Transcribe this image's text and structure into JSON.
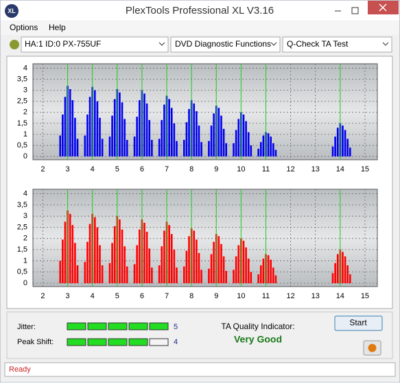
{
  "window": {
    "title": "PlexTools Professional XL V3.16",
    "icon": "XL"
  },
  "menu": [
    "Options",
    "Help"
  ],
  "toolbar": [
    "HA:1 ID:0  PX-755UF",
    "DVD Diagnostic Functions",
    "Q-Check TA Test"
  ],
  "chart_data": [
    {
      "type": "bar",
      "color": "#0000ee",
      "x": [
        2.7,
        2.8,
        2.9,
        3.0,
        3.1,
        3.2,
        3.3,
        3.4,
        3.7,
        3.8,
        3.9,
        4.0,
        4.1,
        4.2,
        4.3,
        4.4,
        4.7,
        4.8,
        4.9,
        5.0,
        5.1,
        5.2,
        5.3,
        5.4,
        5.7,
        5.8,
        5.9,
        6.0,
        6.1,
        6.2,
        6.3,
        6.4,
        6.7,
        6.8,
        6.9,
        7.0,
        7.1,
        7.2,
        7.3,
        7.4,
        7.7,
        7.8,
        7.9,
        8.0,
        8.1,
        8.2,
        8.3,
        8.4,
        8.7,
        8.8,
        8.9,
        9.0,
        9.1,
        9.2,
        9.3,
        9.4,
        9.7,
        9.8,
        9.9,
        10.0,
        10.1,
        10.2,
        10.3,
        10.4,
        10.7,
        10.8,
        10.9,
        11.0,
        11.1,
        11.2,
        11.3,
        11.4,
        13.7,
        13.8,
        13.9,
        14.0,
        14.1,
        14.2,
        14.3,
        14.4
      ],
      "values": [
        0.95,
        1.9,
        2.7,
        3.2,
        3.05,
        2.55,
        1.75,
        0.8,
        0.95,
        1.9,
        2.7,
        3.15,
        3.0,
        2.5,
        1.75,
        0.8,
        0.9,
        1.85,
        2.6,
        3.05,
        2.9,
        2.45,
        1.7,
        0.75,
        0.9,
        1.8,
        2.55,
        3.0,
        2.85,
        2.4,
        1.65,
        0.75,
        0.8,
        1.65,
        2.35,
        2.75,
        2.6,
        2.2,
        1.5,
        0.7,
        0.75,
        1.55,
        2.15,
        2.55,
        2.4,
        2.05,
        1.4,
        0.65,
        0.7,
        1.4,
        1.95,
        2.3,
        2.2,
        1.85,
        1.25,
        0.6,
        0.6,
        1.2,
        1.7,
        2.0,
        1.9,
        1.6,
        1.1,
        0.5,
        0.35,
        0.65,
        0.95,
        1.1,
        1.05,
        0.9,
        0.6,
        0.3,
        0.45,
        0.9,
        1.3,
        1.5,
        1.4,
        1.2,
        0.8,
        0.4
      ],
      "xlim": [
        1.6,
        15.5
      ],
      "ylim": [
        -0.15,
        4.2
      ],
      "xticks": [
        2,
        3,
        4,
        5,
        6,
        7,
        8,
        9,
        10,
        11,
        12,
        13,
        14,
        15
      ],
      "yticks": [
        0,
        {
          "value": 0.5,
          "label": "0,5"
        },
        1,
        {
          "value": 1.5,
          "label": "1,5"
        },
        2,
        {
          "value": 2.5,
          "label": "2,5"
        },
        3,
        {
          "value": 3.5,
          "label": "3,5"
        },
        4
      ],
      "grid": true,
      "reference_lines": {
        "values": [
          3,
          4,
          5,
          6,
          7,
          8,
          9,
          10,
          11,
          14
        ],
        "color": "#22cc22"
      }
    },
    {
      "type": "bar",
      "color": "#ff0000",
      "x": [
        2.7,
        2.8,
        2.9,
        3.0,
        3.1,
        3.2,
        3.3,
        3.4,
        3.7,
        3.8,
        3.9,
        4.0,
        4.1,
        4.2,
        4.3,
        4.4,
        4.7,
        4.8,
        4.9,
        5.0,
        5.1,
        5.2,
        5.3,
        5.4,
        5.7,
        5.8,
        5.9,
        6.0,
        6.1,
        6.2,
        6.3,
        6.4,
        6.7,
        6.8,
        6.9,
        7.0,
        7.1,
        7.2,
        7.3,
        7.4,
        7.7,
        7.8,
        7.9,
        8.0,
        8.1,
        8.2,
        8.3,
        8.4,
        8.7,
        8.8,
        8.9,
        9.0,
        9.1,
        9.2,
        9.3,
        9.4,
        9.7,
        9.8,
        9.9,
        10.0,
        10.1,
        10.2,
        10.3,
        10.4,
        10.7,
        10.8,
        10.9,
        11.0,
        11.1,
        11.2,
        11.3,
        11.4,
        13.7,
        13.8,
        13.9,
        14.0,
        14.1,
        14.2,
        14.3,
        14.4
      ],
      "values": [
        1.0,
        1.95,
        2.75,
        3.25,
        3.1,
        2.6,
        1.8,
        0.8,
        0.95,
        1.85,
        2.65,
        3.1,
        2.95,
        2.5,
        1.7,
        0.8,
        0.9,
        1.8,
        2.55,
        3.0,
        2.85,
        2.4,
        1.65,
        0.75,
        0.85,
        1.7,
        2.4,
        2.85,
        2.7,
        2.3,
        1.55,
        0.7,
        0.8,
        1.65,
        2.35,
        2.75,
        2.6,
        2.2,
        1.5,
        0.7,
        0.75,
        1.45,
        2.1,
        2.45,
        2.35,
        1.95,
        1.35,
        0.6,
        0.65,
        1.3,
        1.85,
        2.2,
        2.1,
        1.75,
        1.2,
        0.55,
        0.6,
        1.2,
        1.7,
        2.0,
        1.9,
        1.6,
        1.1,
        0.5,
        0.4,
        0.8,
        1.1,
        1.3,
        1.25,
        1.05,
        0.7,
        0.35,
        0.45,
        0.9,
        1.3,
        1.5,
        1.4,
        1.2,
        0.8,
        0.4
      ],
      "xlim": [
        1.6,
        15.5
      ],
      "ylim": [
        -0.15,
        4.2
      ],
      "xticks": [
        2,
        3,
        4,
        5,
        6,
        7,
        8,
        9,
        10,
        11,
        12,
        13,
        14,
        15
      ],
      "yticks": [
        0,
        {
          "value": 0.5,
          "label": "0,5"
        },
        1,
        {
          "value": 1.5,
          "label": "1,5"
        },
        2,
        {
          "value": 2.5,
          "label": "2,5"
        },
        3,
        {
          "value": 3.5,
          "label": "3,5"
        },
        4
      ],
      "grid": true,
      "reference_lines": {
        "values": [
          3,
          4,
          5,
          6,
          7,
          8,
          9,
          10,
          11,
          14
        ],
        "color": "#22cc22"
      }
    }
  ],
  "jitter": {
    "label": "Jitter:",
    "value": 5
  },
  "peak_shift": {
    "label": "Peak Shift:",
    "value": 4
  },
  "quality": {
    "label": "TA Quality Indicator:",
    "value": "Very Good"
  },
  "start_button": "Start",
  "status": "Ready"
}
